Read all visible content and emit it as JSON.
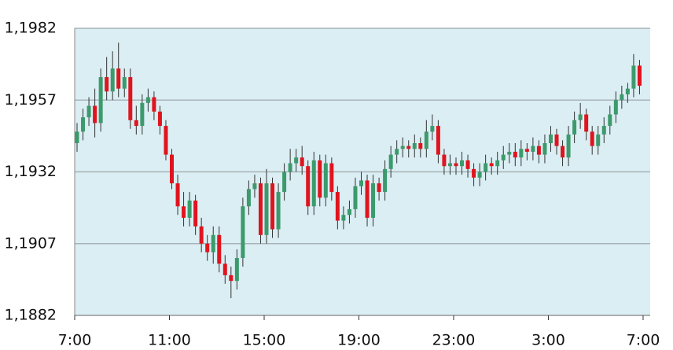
{
  "chart_data": {
    "type": "candlestick",
    "x": [
      0.1,
      0.35,
      0.6,
      0.85,
      1.1,
      1.35,
      1.6,
      1.85,
      2.1,
      2.35,
      2.6,
      2.85,
      3.1,
      3.35,
      3.6,
      3.85,
      4.1,
      4.35,
      4.6,
      4.85,
      5.1,
      5.35,
      5.6,
      5.85,
      6.1,
      6.35,
      6.6,
      6.85,
      7.1,
      7.35,
      7.6,
      7.85,
      8.1,
      8.35,
      8.6,
      8.85,
      9.1,
      9.35,
      9.6,
      9.85,
      10.1,
      10.35,
      10.6,
      10.85,
      11.1,
      11.35,
      11.6,
      11.85,
      12.1,
      12.35,
      12.6,
      12.85,
      13.1,
      13.35,
      13.6,
      13.85,
      14.1,
      14.35,
      14.6,
      14.85,
      15.1,
      15.35,
      15.6,
      15.85,
      16.1,
      16.35,
      16.6,
      16.85,
      17.1,
      17.35,
      17.6,
      17.85,
      18.1,
      18.35,
      18.6,
      18.85,
      19.1,
      19.35,
      19.6,
      19.85,
      20.1,
      20.35,
      20.6,
      20.85,
      21.1,
      21.35,
      21.6,
      21.85,
      22.1,
      22.35,
      22.6,
      22.85,
      23.1,
      23.35,
      23.6,
      23.85
    ],
    "open": [
      1.1942,
      1.1946,
      1.1951,
      1.1955,
      1.1949,
      1.1965,
      1.196,
      1.1968,
      1.1961,
      1.1965,
      1.195,
      1.1948,
      1.1956,
      1.1958,
      1.1953,
      1.1948,
      1.1938,
      1.1928,
      1.192,
      1.1916,
      1.1922,
      1.1913,
      1.1907,
      1.1904,
      1.191,
      1.19,
      1.1896,
      1.1894,
      1.1902,
      1.192,
      1.1926,
      1.1928,
      1.191,
      1.1928,
      1.1912,
      1.1925,
      1.1932,
      1.1935,
      1.1937,
      1.1934,
      1.192,
      1.1936,
      1.1923,
      1.1935,
      1.1925,
      1.1915,
      1.1917,
      1.1919,
      1.1927,
      1.1929,
      1.1916,
      1.1928,
      1.1925,
      1.1933,
      1.1938,
      1.194,
      1.1941,
      1.194,
      1.1942,
      1.194,
      1.1946,
      1.1948,
      1.1938,
      1.1934,
      1.1935,
      1.1934,
      1.1936,
      1.1933,
      1.193,
      1.1932,
      1.1935,
      1.1934,
      1.1936,
      1.1938,
      1.1939,
      1.1937,
      1.194,
      1.1939,
      1.1941,
      1.1938,
      1.1942,
      1.1945,
      1.1941,
      1.1937,
      1.1945,
      1.195,
      1.1952,
      1.1946,
      1.1941,
      1.1945,
      1.1948,
      1.1952,
      1.1957,
      1.1959,
      1.1961,
      1.1969
    ],
    "high": [
      1.1949,
      1.1954,
      1.1958,
      1.1961,
      1.1968,
      1.1972,
      1.1974,
      1.1977,
      1.1968,
      1.1968,
      1.1955,
      1.1959,
      1.1961,
      1.196,
      1.1955,
      1.195,
      1.194,
      1.1931,
      1.1925,
      1.1925,
      1.1924,
      1.1916,
      1.191,
      1.1913,
      1.1913,
      1.1903,
      1.1899,
      1.1905,
      1.1923,
      1.1929,
      1.1931,
      1.193,
      1.1933,
      1.193,
      1.1928,
      1.1935,
      1.194,
      1.194,
      1.1941,
      1.1936,
      1.1939,
      1.1938,
      1.1938,
      1.1937,
      1.1927,
      1.192,
      1.1922,
      1.193,
      1.1932,
      1.1931,
      1.1931,
      1.193,
      1.1936,
      1.1941,
      1.1943,
      1.1944,
      1.1943,
      1.1945,
      1.1944,
      1.195,
      1.1952,
      1.195,
      1.194,
      1.1938,
      1.1937,
      1.1939,
      1.1938,
      1.1935,
      1.1935,
      1.1938,
      1.1937,
      1.1939,
      1.1941,
      1.1942,
      1.1942,
      1.1943,
      1.1942,
      1.1944,
      1.1943,
      1.1945,
      1.1948,
      1.1947,
      1.1943,
      1.1948,
      1.1953,
      1.1956,
      1.1954,
      1.1948,
      1.1948,
      1.1951,
      1.1955,
      1.196,
      1.1962,
      1.1963,
      1.1973,
      1.1971
    ],
    "low": [
      1.1939,
      1.1943,
      1.1948,
      1.1944,
      1.1946,
      1.1957,
      1.1957,
      1.1958,
      1.1958,
      1.1947,
      1.1945,
      1.1945,
      1.1953,
      1.195,
      1.1945,
      1.1936,
      1.1926,
      1.1917,
      1.1913,
      1.1913,
      1.191,
      1.1904,
      1.1901,
      1.19,
      1.1897,
      1.1893,
      1.1888,
      1.1891,
      1.1899,
      1.1917,
      1.1923,
      1.1907,
      1.1907,
      1.1909,
      1.1909,
      1.1922,
      1.1929,
      1.1932,
      1.1931,
      1.1917,
      1.1917,
      1.192,
      1.192,
      1.1922,
      1.1912,
      1.1912,
      1.1914,
      1.1916,
      1.1924,
      1.1913,
      1.1913,
      1.1922,
      1.1922,
      1.193,
      1.1935,
      1.1937,
      1.1937,
      1.1937,
      1.1937,
      1.1937,
      1.1943,
      1.1935,
      1.1931,
      1.1931,
      1.1931,
      1.1931,
      1.193,
      1.1927,
      1.1927,
      1.1929,
      1.1931,
      1.1931,
      1.1933,
      1.1935,
      1.1934,
      1.1934,
      1.1936,
      1.1936,
      1.1935,
      1.1935,
      1.1939,
      1.1938,
      1.1934,
      1.1934,
      1.1942,
      1.1947,
      1.1943,
      1.1938,
      1.1938,
      1.1942,
      1.1945,
      1.1949,
      1.1954,
      1.1956,
      1.1958,
      1.1959
    ],
    "close": [
      1.1946,
      1.1951,
      1.1955,
      1.1949,
      1.1965,
      1.196,
      1.1968,
      1.1961,
      1.1965,
      1.195,
      1.1948,
      1.1956,
      1.1958,
      1.1953,
      1.1948,
      1.1938,
      1.1928,
      1.192,
      1.1916,
      1.1922,
      1.1913,
      1.1907,
      1.1904,
      1.191,
      1.19,
      1.1896,
      1.1894,
      1.1902,
      1.192,
      1.1926,
      1.1928,
      1.191,
      1.1928,
      1.1912,
      1.1925,
      1.1932,
      1.1935,
      1.1937,
      1.1934,
      1.192,
      1.1936,
      1.1923,
      1.1935,
      1.1925,
      1.1915,
      1.1917,
      1.1919,
      1.1927,
      1.1929,
      1.1916,
      1.1928,
      1.1925,
      1.1933,
      1.1938,
      1.194,
      1.1941,
      1.194,
      1.1942,
      1.194,
      1.1946,
      1.1948,
      1.1938,
      1.1934,
      1.1935,
      1.1934,
      1.1936,
      1.1933,
      1.193,
      1.1932,
      1.1935,
      1.1934,
      1.1936,
      1.1938,
      1.1939,
      1.1937,
      1.194,
      1.1939,
      1.1941,
      1.1938,
      1.1942,
      1.1945,
      1.1941,
      1.1937,
      1.1945,
      1.195,
      1.1952,
      1.1946,
      1.1941,
      1.1945,
      1.1948,
      1.1952,
      1.1957,
      1.1959,
      1.1961,
      1.1969,
      1.1962
    ],
    "up_color": "#3c9a6c",
    "down_color": "#e0141e",
    "background": "#daeef3",
    "xlim": [
      0,
      24.3
    ],
    "xticks": [
      {
        "value": 0,
        "label": "7:00"
      },
      {
        "value": 4,
        "label": "11:00"
      },
      {
        "value": 8,
        "label": "15:00"
      },
      {
        "value": 12,
        "label": "19:00"
      },
      {
        "value": 16,
        "label": "23:00"
      },
      {
        "value": 20,
        "label": "3:00"
      },
      {
        "value": 24,
        "label": "7:00"
      }
    ],
    "ylim": [
      1.1882,
      1.1982
    ],
    "yticks": [
      {
        "value": 1.1882,
        "label": "1,1882"
      },
      {
        "value": 1.1907,
        "label": "1,1907"
      },
      {
        "value": 1.1932,
        "label": "1,1932"
      },
      {
        "value": 1.1957,
        "label": "1,1957"
      },
      {
        "value": 1.1982,
        "label": "1,1982"
      }
    ],
    "grid": true
  }
}
